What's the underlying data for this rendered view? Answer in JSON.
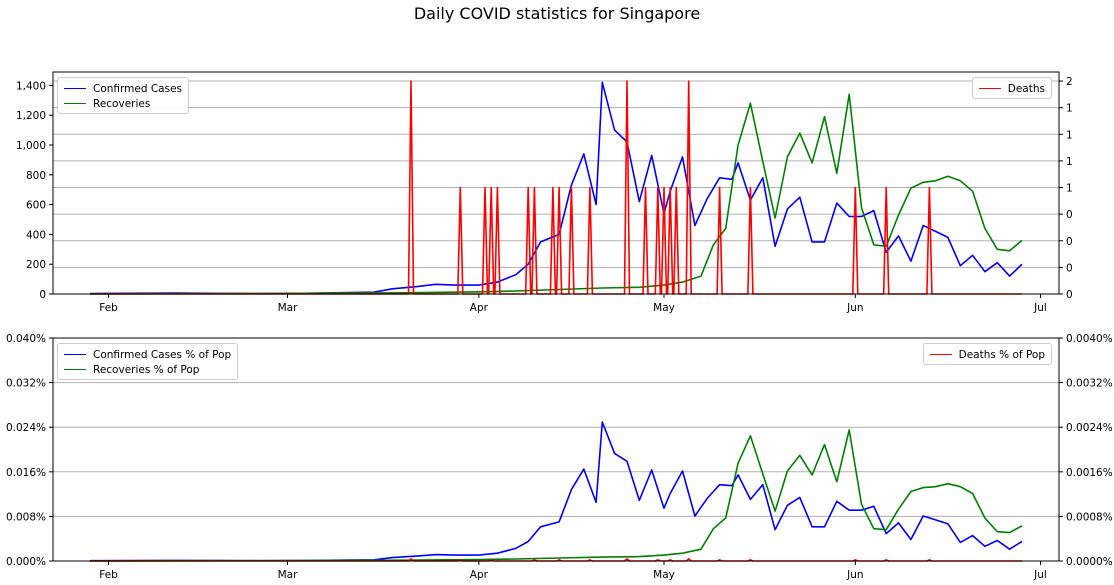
{
  "figure": {
    "title": "Daily COVID statistics for Singapore"
  },
  "colors": {
    "confirmed": "#0000ff",
    "recoveries": "#008000",
    "deaths": "#ff0000",
    "grid": "#b0b0b0"
  },
  "chart_data": [
    {
      "type": "line",
      "title": "",
      "xlabel": "",
      "ylabel": "",
      "x_ticks": [
        "Feb",
        "Mar",
        "Apr",
        "May",
        "Jun",
        "Jul"
      ],
      "x_tick_dates": [
        "2020-02-01",
        "2020-03-01",
        "2020-04-01",
        "2020-05-01",
        "2020-06-01",
        "2020-07-01"
      ],
      "xlim": [
        "2020-01-23",
        "2020-07-04"
      ],
      "left_axis": {
        "ylim": [
          0,
          1490
        ],
        "ticks": [
          0,
          200,
          400,
          600,
          800,
          1000,
          1200,
          1400
        ],
        "tick_labels": [
          "0",
          "200",
          "400",
          "600",
          "800",
          "1,000",
          "1,200",
          "1,400"
        ]
      },
      "right_axis": {
        "ylim": [
          0,
          2.085
        ],
        "ticks": [
          0,
          0.25,
          0.5,
          0.75,
          1,
          1.25,
          1.5,
          1.75,
          2
        ],
        "tick_labels": [
          "0",
          "0",
          "0",
          "0",
          "1",
          "1",
          "1",
          "1",
          "2"
        ]
      },
      "grid": "right-axis horizontal",
      "legend_left": {
        "placement": "upper-left",
        "entries": [
          "Confirmed Cases",
          "Recoveries"
        ]
      },
      "legend_right": {
        "placement": "upper-right",
        "entries": [
          "Deaths"
        ]
      },
      "series": [
        {
          "name": "Confirmed Cases",
          "axis": "left",
          "color": "#0000ff",
          "dates": [
            "2020-01-29",
            "2020-02-05",
            "2020-02-12",
            "2020-02-19",
            "2020-02-26",
            "2020-03-04",
            "2020-03-11",
            "2020-03-15",
            "2020-03-18",
            "2020-03-22",
            "2020-03-25",
            "2020-03-28",
            "2020-04-01",
            "2020-04-04",
            "2020-04-07",
            "2020-04-09",
            "2020-04-11",
            "2020-04-14",
            "2020-04-16",
            "2020-04-18",
            "2020-04-20",
            "2020-04-21",
            "2020-04-23",
            "2020-04-25",
            "2020-04-27",
            "2020-04-29",
            "2020-05-01",
            "2020-05-02",
            "2020-05-04",
            "2020-05-06",
            "2020-05-08",
            "2020-05-10",
            "2020-05-12",
            "2020-05-13",
            "2020-05-15",
            "2020-05-17",
            "2020-05-19",
            "2020-05-21",
            "2020-05-23",
            "2020-05-25",
            "2020-05-27",
            "2020-05-29",
            "2020-05-31",
            "2020-06-02",
            "2020-06-04",
            "2020-06-06",
            "2020-06-08",
            "2020-06-10",
            "2020-06-12",
            "2020-06-14",
            "2020-06-16",
            "2020-06-18",
            "2020-06-20",
            "2020-06-22",
            "2020-06-24",
            "2020-06-26",
            "2020-06-28"
          ],
          "values": [
            3,
            5,
            6,
            4,
            3,
            5,
            10,
            12,
            35,
            50,
            65,
            60,
            60,
            80,
            130,
            200,
            350,
            400,
            730,
            940,
            600,
            1420,
            1100,
            1020,
            620,
            930,
            540,
            690,
            920,
            460,
            640,
            780,
            770,
            880,
            630,
            780,
            320,
            570,
            650,
            350,
            350,
            610,
            520,
            520,
            560,
            280,
            390,
            220,
            460,
            420,
            380,
            190,
            260,
            150,
            210,
            120,
            200
          ]
        },
        {
          "name": "Recoveries",
          "axis": "left",
          "color": "#008000",
          "dates": [
            "2020-01-29",
            "2020-02-10",
            "2020-02-20",
            "2020-03-01",
            "2020-03-10",
            "2020-03-20",
            "2020-04-01",
            "2020-04-07",
            "2020-04-14",
            "2020-04-21",
            "2020-04-27",
            "2020-05-01",
            "2020-05-04",
            "2020-05-07",
            "2020-05-09",
            "2020-05-11",
            "2020-05-13",
            "2020-05-15",
            "2020-05-17",
            "2020-05-19",
            "2020-05-21",
            "2020-05-23",
            "2020-05-25",
            "2020-05-27",
            "2020-05-29",
            "2020-05-31",
            "2020-06-02",
            "2020-06-04",
            "2020-06-06",
            "2020-06-08",
            "2020-06-10",
            "2020-06-12",
            "2020-06-14",
            "2020-06-16",
            "2020-06-18",
            "2020-06-20",
            "2020-06-22",
            "2020-06-24",
            "2020-06-26",
            "2020-06-28"
          ],
          "values": [
            0,
            2,
            3,
            4,
            6,
            8,
            15,
            20,
            30,
            40,
            45,
            60,
            80,
            120,
            330,
            440,
            1000,
            1280,
            890,
            510,
            920,
            1080,
            880,
            1190,
            810,
            1340,
            580,
            330,
            320,
            530,
            710,
            750,
            760,
            790,
            760,
            690,
            440,
            300,
            290,
            360
          ]
        },
        {
          "name": "Deaths",
          "axis": "right",
          "color": "#ff0000",
          "spikes": [
            {
              "date": "2020-03-21",
              "value": 2
            },
            {
              "date": "2020-03-29",
              "value": 1
            },
            {
              "date": "2020-04-02",
              "value": 1
            },
            {
              "date": "2020-04-03",
              "value": 1
            },
            {
              "date": "2020-04-04",
              "value": 1
            },
            {
              "date": "2020-04-09",
              "value": 1
            },
            {
              "date": "2020-04-10",
              "value": 1
            },
            {
              "date": "2020-04-13",
              "value": 1
            },
            {
              "date": "2020-04-14",
              "value": 1
            },
            {
              "date": "2020-04-16",
              "value": 1
            },
            {
              "date": "2020-04-19",
              "value": 1
            },
            {
              "date": "2020-04-25",
              "value": 2
            },
            {
              "date": "2020-04-28",
              "value": 1
            },
            {
              "date": "2020-04-30",
              "value": 1
            },
            {
              "date": "2020-05-01",
              "value": 1
            },
            {
              "date": "2020-05-02",
              "value": 1
            },
            {
              "date": "2020-05-03",
              "value": 1
            },
            {
              "date": "2020-05-05",
              "value": 2
            },
            {
              "date": "2020-05-10",
              "value": 1
            },
            {
              "date": "2020-05-15",
              "value": 1
            },
            {
              "date": "2020-06-01",
              "value": 1
            },
            {
              "date": "2020-06-06",
              "value": 1
            },
            {
              "date": "2020-06-13",
              "value": 1
            }
          ]
        }
      ]
    },
    {
      "type": "line",
      "title": "",
      "xlabel": "",
      "ylabel": "",
      "x_ticks": [
        "Feb",
        "Mar",
        "Apr",
        "May",
        "Jun",
        "Jul"
      ],
      "x_tick_dates": [
        "2020-02-01",
        "2020-03-01",
        "2020-04-01",
        "2020-05-01",
        "2020-06-01",
        "2020-07-01"
      ],
      "xlim": [
        "2020-01-23",
        "2020-07-04"
      ],
      "left_axis": {
        "ylim": [
          0,
          0.04
        ],
        "ticks": [
          0,
          0.008,
          0.016,
          0.024,
          0.032,
          0.04
        ],
        "tick_labels": [
          "0.000%",
          "0.008%",
          "0.016%",
          "0.024%",
          "0.032%",
          "0.040%"
        ]
      },
      "right_axis": {
        "ylim": [
          0,
          0.004
        ],
        "ticks": [
          0,
          0.0008,
          0.0016,
          0.0024,
          0.0032,
          0.004
        ],
        "tick_labels": [
          "0.0000%",
          "0.0008%",
          "0.0016%",
          "0.0024%",
          "0.0032%",
          "0.0040%"
        ]
      },
      "grid": "right-axis horizontal",
      "legend_left": {
        "placement": "upper-left",
        "entries": [
          "Confirmed Cases % of Pop",
          "Recoveries % of Pop"
        ]
      },
      "legend_right": {
        "placement": "upper-right",
        "entries": [
          "Deaths % of Pop"
        ]
      },
      "series": [
        {
          "name": "Confirmed Cases % of Pop",
          "axis": "left",
          "color": "#0000ff",
          "dates": [
            "2020-01-29",
            "2020-02-05",
            "2020-02-12",
            "2020-02-19",
            "2020-02-26",
            "2020-03-04",
            "2020-03-11",
            "2020-03-15",
            "2020-03-18",
            "2020-03-22",
            "2020-03-25",
            "2020-03-28",
            "2020-04-01",
            "2020-04-04",
            "2020-04-07",
            "2020-04-09",
            "2020-04-11",
            "2020-04-14",
            "2020-04-16",
            "2020-04-18",
            "2020-04-20",
            "2020-04-21",
            "2020-04-23",
            "2020-04-25",
            "2020-04-27",
            "2020-04-29",
            "2020-05-01",
            "2020-05-02",
            "2020-05-04",
            "2020-05-06",
            "2020-05-08",
            "2020-05-10",
            "2020-05-12",
            "2020-05-13",
            "2020-05-15",
            "2020-05-17",
            "2020-05-19",
            "2020-05-21",
            "2020-05-23",
            "2020-05-25",
            "2020-05-27",
            "2020-05-29",
            "2020-05-31",
            "2020-06-02",
            "2020-06-04",
            "2020-06-06",
            "2020-06-08",
            "2020-06-10",
            "2020-06-12",
            "2020-06-14",
            "2020-06-16",
            "2020-06-18",
            "2020-06-20",
            "2020-06-22",
            "2020-06-24",
            "2020-06-26",
            "2020-06-28"
          ],
          "values": [
            5e-05,
            9e-05,
            0.00011,
            7e-05,
            5e-05,
            9e-05,
            0.00018,
            0.00021,
            0.00061,
            0.00088,
            0.00114,
            0.00105,
            0.00105,
            0.0014,
            0.00228,
            0.0035,
            0.00614,
            0.00702,
            0.0128,
            0.01649,
            0.01053,
            0.02491,
            0.0193,
            0.01789,
            0.01088,
            0.01632,
            0.00947,
            0.01211,
            0.01614,
            0.00807,
            0.01123,
            0.01368,
            0.01351,
            0.01544,
            0.01105,
            0.01368,
            0.00561,
            0.01,
            0.0114,
            0.00614,
            0.00614,
            0.0107,
            0.00912,
            0.00912,
            0.00982,
            0.00491,
            0.00684,
            0.00386,
            0.00807,
            0.00737,
            0.00667,
            0.00333,
            0.00456,
            0.00263,
            0.00368,
            0.00211,
            0.00351
          ]
        },
        {
          "name": "Recoveries % of Pop",
          "axis": "left",
          "color": "#008000",
          "dates": [
            "2020-01-29",
            "2020-02-10",
            "2020-02-20",
            "2020-03-01",
            "2020-03-10",
            "2020-03-20",
            "2020-04-01",
            "2020-04-07",
            "2020-04-14",
            "2020-04-21",
            "2020-04-27",
            "2020-05-01",
            "2020-05-04",
            "2020-05-07",
            "2020-05-09",
            "2020-05-11",
            "2020-05-13",
            "2020-05-15",
            "2020-05-17",
            "2020-05-19",
            "2020-05-21",
            "2020-05-23",
            "2020-05-25",
            "2020-05-27",
            "2020-05-29",
            "2020-05-31",
            "2020-06-02",
            "2020-06-04",
            "2020-06-06",
            "2020-06-08",
            "2020-06-10",
            "2020-06-12",
            "2020-06-14",
            "2020-06-16",
            "2020-06-18",
            "2020-06-20",
            "2020-06-22",
            "2020-06-24",
            "2020-06-26",
            "2020-06-28"
          ],
          "values": [
            0,
            4e-05,
            5e-05,
            7e-05,
            0.00011,
            0.00014,
            0.00026,
            0.00035,
            0.00053,
            0.0007,
            0.00079,
            0.00105,
            0.0014,
            0.00211,
            0.00579,
            0.00772,
            0.01754,
            0.02246,
            0.01561,
            0.00895,
            0.01614,
            0.01895,
            0.01544,
            0.02088,
            0.01421,
            0.02351,
            0.01018,
            0.00579,
            0.00561,
            0.0093,
            0.01246,
            0.01316,
            0.01333,
            0.01386,
            0.01333,
            0.01211,
            0.00772,
            0.00526,
            0.00509,
            0.00632
          ]
        },
        {
          "name": "Deaths % of Pop",
          "axis": "right",
          "color": "#ff0000",
          "spikes": [
            {
              "date": "2020-03-21",
              "value": 4e-05
            },
            {
              "date": "2020-03-29",
              "value": 2e-05
            },
            {
              "date": "2020-04-03",
              "value": 2e-05
            },
            {
              "date": "2020-04-10",
              "value": 2e-05
            },
            {
              "date": "2020-04-14",
              "value": 2e-05
            },
            {
              "date": "2020-04-19",
              "value": 2e-05
            },
            {
              "date": "2020-04-25",
              "value": 4e-05
            },
            {
              "date": "2020-04-30",
              "value": 2e-05
            },
            {
              "date": "2020-05-02",
              "value": 2e-05
            },
            {
              "date": "2020-05-05",
              "value": 4e-05
            },
            {
              "date": "2020-05-10",
              "value": 2e-05
            },
            {
              "date": "2020-05-15",
              "value": 2e-05
            },
            {
              "date": "2020-06-01",
              "value": 2e-05
            },
            {
              "date": "2020-06-06",
              "value": 2e-05
            },
            {
              "date": "2020-06-13",
              "value": 2e-05
            }
          ]
        }
      ]
    }
  ]
}
